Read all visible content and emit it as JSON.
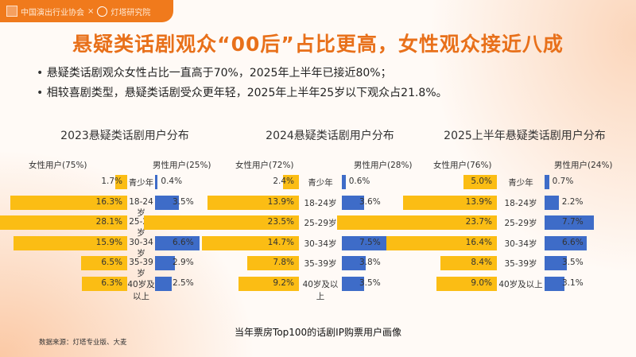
{
  "header": {
    "org1": "中国演出行业协会",
    "separator": "×",
    "org2": "灯塔研究院",
    "brand_color": "#f07a1c"
  },
  "title": "悬疑类话剧观众“00后”占比更高，女性观众接近八成",
  "bullets": [
    "悬疑类话剧观众女性占比一直高于70%，2025年上半年已接近80%；",
    "相较喜剧类型，悬疑类话剧受众更年轻，2025年上半年25岁以下观众占21.8%。"
  ],
  "caption": "当年票房Top100的话剧IP购票用户画像",
  "source": "数据来源：灯塔专业版、大麦",
  "chart_data": [
    {
      "type": "bar",
      "orientation": "horizontal-butterfly",
      "title": "2023悬疑类话剧用户分布",
      "categories": [
        "青少年",
        "18-24岁",
        "25-29岁",
        "30-34岁",
        "35-39岁",
        "40岁及以上"
      ],
      "series": [
        {
          "name": "女性用户(75%)",
          "color": "#fbbd14",
          "values": [
            1.7,
            16.3,
            28.1,
            15.9,
            6.5,
            6.3
          ],
          "labels": [
            "1.7%",
            "16.3%",
            "28.1%",
            "15.9%",
            "6.5%",
            "6.3%"
          ]
        },
        {
          "name": "男性用户(25%)",
          "color": "#3e6cc8",
          "values": [
            0.4,
            3.5,
            9.2,
            6.6,
            2.9,
            2.5
          ],
          "labels": [
            "0.4%",
            "3.5%",
            "9.2%",
            "6.6%",
            "2.9%",
            "2.5%"
          ]
        }
      ],
      "unit": "%"
    },
    {
      "type": "bar",
      "orientation": "horizontal-butterfly",
      "title": "2024悬疑类话剧用户分布",
      "categories": [
        "青少年",
        "18-24岁",
        "25-29岁",
        "30-34岁",
        "35-39岁",
        "40岁及以上"
      ],
      "series": [
        {
          "name": "女性用户(72%)",
          "color": "#fbbd14",
          "values": [
            2.4,
            13.9,
            23.5,
            14.7,
            7.8,
            9.2
          ],
          "labels": [
            "2.4%",
            "13.9%",
            "23.5%",
            "14.7%",
            "7.8%",
            "9.2%"
          ]
        },
        {
          "name": "男性用户(28%)",
          "color": "#3e6cc8",
          "values": [
            0.6,
            3.6,
            9.4,
            7.5,
            3.8,
            3.5
          ],
          "labels": [
            "0.6%",
            "3.6%",
            "9.4%",
            "7.5%",
            "3.8%",
            "3.5%"
          ]
        }
      ],
      "unit": "%"
    },
    {
      "type": "bar",
      "orientation": "horizontal-butterfly",
      "title": "2025上半年悬疑类话剧用户分布",
      "categories": [
        "青少年",
        "18-24岁",
        "25-29岁",
        "30-34岁",
        "35-39岁",
        "40岁及以上"
      ],
      "series": [
        {
          "name": "女性用户(76%)",
          "color": "#fbbd14",
          "values": [
            5.0,
            13.9,
            23.7,
            16.4,
            8.4,
            9.0
          ],
          "labels": [
            "5.0%",
            "13.9%",
            "23.7%",
            "16.4%",
            "8.4%",
            "9.0%"
          ]
        },
        {
          "name": "男性用户(24%)",
          "color": "#3e6cc8",
          "values": [
            0.7,
            2.2,
            7.7,
            6.6,
            3.5,
            3.1
          ],
          "labels": [
            "0.7%",
            "2.2%",
            "7.7%",
            "6.6%",
            "3.5%",
            "3.1%"
          ]
        }
      ],
      "unit": "%"
    }
  ]
}
